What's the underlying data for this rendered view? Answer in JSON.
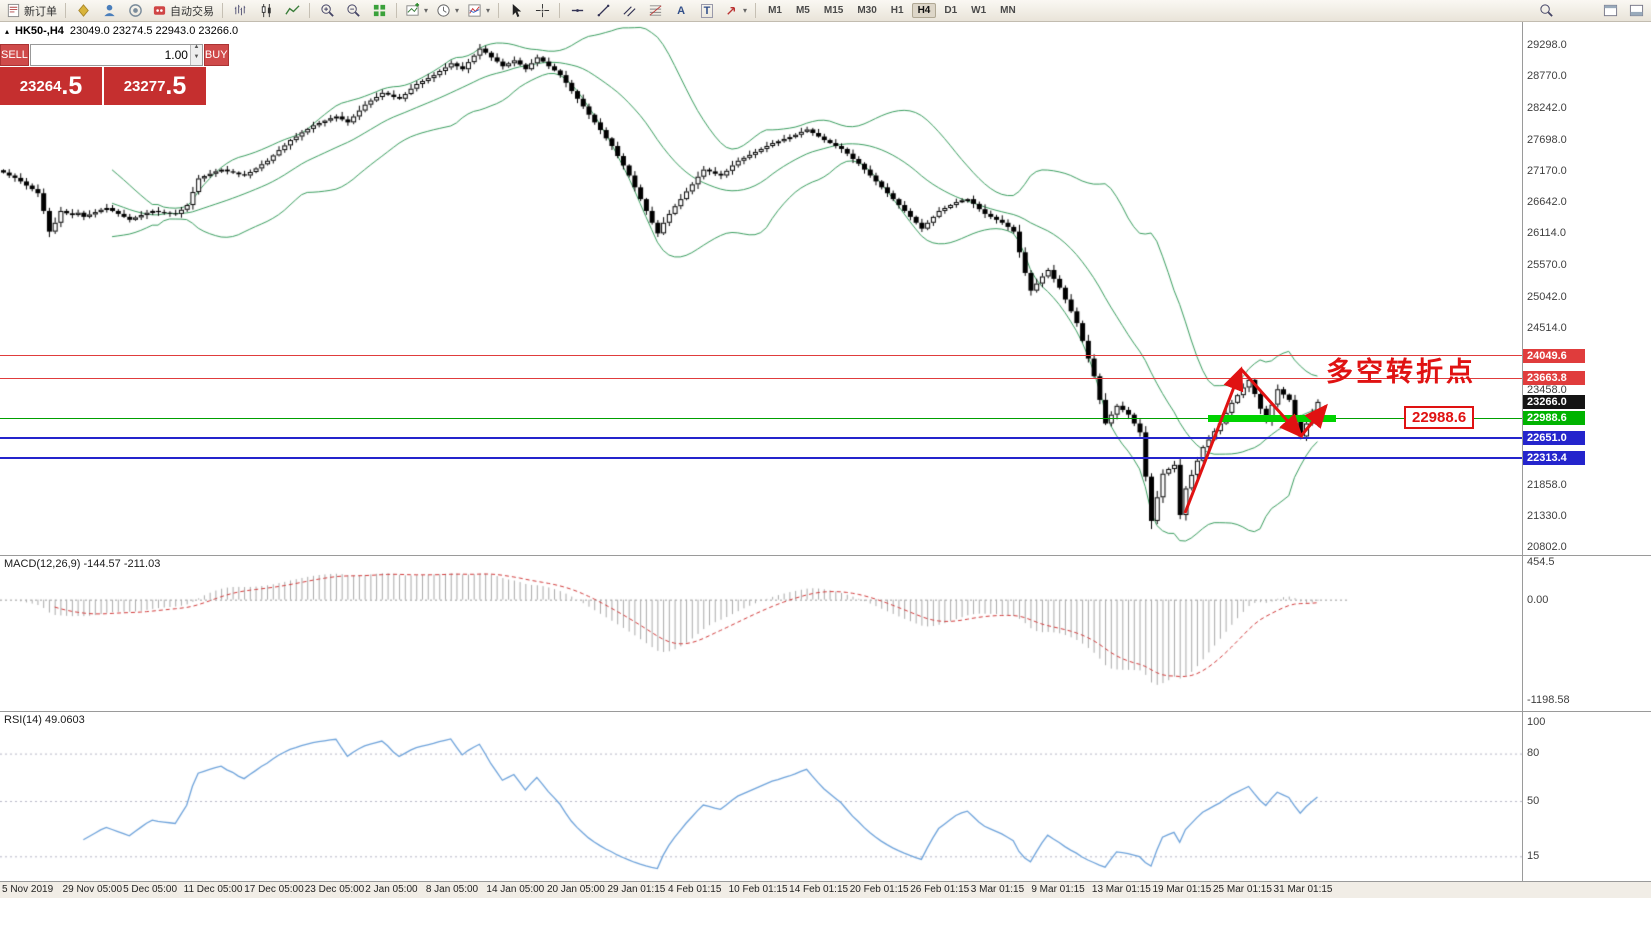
{
  "toolbar": {
    "new_order_label": "新订单",
    "auto_trading_label": "自动交易",
    "timeframes": [
      "M1",
      "M5",
      "M15",
      "M30",
      "H1",
      "H4",
      "D1",
      "W1",
      "MN"
    ],
    "active_timeframe": "H4",
    "text_tool_label": "A",
    "label_tool_label": "T"
  },
  "trade_panel": {
    "sell_label": "SELL",
    "buy_label": "BUY",
    "volume": "1.00",
    "sell_price_main": "23264",
    "sell_price_frac": ".5",
    "buy_price_main": "23277",
    "buy_price_frac": ".5",
    "button_color": "#cf4a4a",
    "price_bg_color": "#c52f2f"
  },
  "chart": {
    "title": "HK50-,H4",
    "ohlc_text": "23049.0 23274.5 22943.0 23266.0",
    "collapse_arrow": "▴",
    "annotation_text": "多空转折点",
    "annotation_label": "22988.6",
    "annotation_color": "#e01212",
    "bollinger_color": "#3a9e5f",
    "price_axis_labels": [
      "29298.0",
      "28770.0",
      "28242.0",
      "27698.0",
      "27170.0",
      "26642.0",
      "26114.0",
      "25570.0",
      "25042.0",
      "24514.0",
      "23458.0",
      "21858.0",
      "21330.0",
      "20802.0"
    ],
    "price_tags": [
      {
        "text": "24049.6",
        "price": 24049.6,
        "bg": "#e03c3c"
      },
      {
        "text": "23663.8",
        "price": 23663.8,
        "bg": "#e03c3c"
      },
      {
        "text": "23266.0",
        "price": 23266.0,
        "bg": "#141414"
      },
      {
        "text": "22988.6",
        "price": 22988.6,
        "bg": "#00b300"
      },
      {
        "text": "22651.0",
        "price": 22651.0,
        "bg": "#2424cc"
      },
      {
        "text": "22313.4",
        "price": 22313.4,
        "bg": "#2424cc"
      }
    ],
    "level_lines": [
      {
        "price": 24049.6,
        "color": "#e03c3c",
        "thickness": 1
      },
      {
        "price": 23663.8,
        "color": "#e03c3c",
        "thickness": 1
      },
      {
        "price": 22988.6,
        "color": "#00a000",
        "thickness": 1
      },
      {
        "price": 22651.0,
        "color": "#2424cc",
        "thickness": 2
      },
      {
        "price": 22313.4,
        "color": "#2424cc",
        "thickness": 2
      }
    ],
    "support_band": {
      "color": "#00d300",
      "price": 22988.6,
      "x": 1208,
      "width": 128,
      "height": 7
    }
  },
  "chart_data": {
    "type": "candlestick",
    "symbol": "HK50-",
    "period": "H4",
    "title": "HK50-,H4 23049.0 23274.5 22943.0 23266.0",
    "overlays": [
      "Bollinger Bands"
    ],
    "y_range": [
      20690,
      29700
    ],
    "closes": [
      27150,
      27100,
      27060,
      27000,
      26930,
      26870,
      26800,
      26500,
      26150,
      26300,
      26500,
      26460,
      26430,
      26470,
      26400,
      26440,
      26480,
      26520,
      26550,
      26500,
      26450,
      26400,
      26350,
      26390,
      26430,
      26470,
      26500,
      26480,
      26470,
      26460,
      26450,
      26520,
      26600,
      26820,
      27050,
      27090,
      27130,
      27170,
      27200,
      27170,
      27150,
      27120,
      27100,
      27160,
      27220,
      27290,
      27350,
      27440,
      27530,
      27610,
      27700,
      27760,
      27830,
      27890,
      27950,
      27990,
      28030,
      28070,
      28100,
      28050,
      28000,
      28100,
      28200,
      28300,
      28370,
      28430,
      28500,
      28470,
      28430,
      28400,
      28480,
      28570,
      28650,
      28700,
      28750,
      28800,
      28870,
      28930,
      29000,
      28950,
      28900,
      29020,
      29130,
      29250,
      29180,
      29100,
      29030,
      28950,
      29000,
      29050,
      28980,
      28900,
      29000,
      29100,
      29030,
      28950,
      28880,
      28800,
      28670,
      28530,
      28400,
      28270,
      28130,
      28000,
      27870,
      27730,
      27600,
      27430,
      27270,
      27100,
      26900,
      26700,
      26500,
      26300,
      26120,
      26300,
      26450,
      26580,
      26700,
      26830,
      26950,
      27080,
      27200,
      27170,
      27130,
      27100,
      27180,
      27270,
      27350,
      27400,
      27450,
      27500,
      27550,
      27600,
      27650,
      27680,
      27720,
      27750,
      27790,
      27840,
      27880,
      27820,
      27760,
      27700,
      27650,
      27600,
      27550,
      27470,
      27380,
      27300,
      27200,
      27100,
      27000,
      26900,
      26800,
      26700,
      26600,
      26500,
      26400,
      26300,
      26200,
      26300,
      26400,
      26500,
      26550,
      26600,
      26650,
      26680,
      26700,
      26620,
      26530,
      26450,
      26400,
      26350,
      26300,
      26230,
      26150,
      25800,
      25450,
      25150,
      25270,
      25390,
      25500,
      25350,
      25200,
      25000,
      24800,
      24600,
      24300,
      24000,
      23700,
      23300,
      22900,
      23050,
      23200,
      23130,
      23050,
      22900,
      22750,
      22000,
      21250,
      21650,
      22050,
      22130,
      22200,
      21350,
      21800,
      22030,
      22270,
      22500,
      22630,
      22770,
      22900,
      23080,
      23250,
      23380,
      23510,
      23640,
      23400,
      23150,
      22950,
      23220,
      23480,
      23390,
      23300,
      22990,
      22680,
      22900,
      23080,
      23266
    ]
  },
  "macd": {
    "label": "MACD(12,26,9) -144.57 -211.03",
    "axis_labels": [
      "454.5",
      "0.00",
      "-1198.58"
    ],
    "axis_values": [
      454.5,
      0,
      -1198.58
    ],
    "v_max": 500,
    "v_min": -1300,
    "histogram_color": "#aaaaaa",
    "signal_color": "#d23b3b"
  },
  "rsi": {
    "label": "RSI(14) 49.0603",
    "axis_labels": [
      "100",
      "80",
      "50",
      "15"
    ],
    "axis_values": [
      100,
      80,
      50,
      15
    ],
    "levels": [
      80,
      50,
      15
    ],
    "line_color": "#6ea3db"
  },
  "time_axis": {
    "labels": [
      "5 Nov 2019",
      "29 Nov 05:00",
      "5 Dec 05:00",
      "11 Dec 05:00",
      "17 Dec 05:00",
      "23 Dec 05:00",
      "2 Jan 05:00",
      "8 Jan 05:00",
      "14 Jan 05:00",
      "20 Jan 05:00",
      "29 Jan 01:15",
      "4 Feb 01:15",
      "10 Feb 01:15",
      "14 Feb 01:15",
      "20 Feb 01:15",
      "26 Feb 01:15",
      "3 Mar 01:15",
      "9 Mar 01:15",
      "13 Mar 01:15",
      "19 Mar 01:15",
      "25 Mar 01:15",
      "31 Mar 01:15"
    ]
  }
}
